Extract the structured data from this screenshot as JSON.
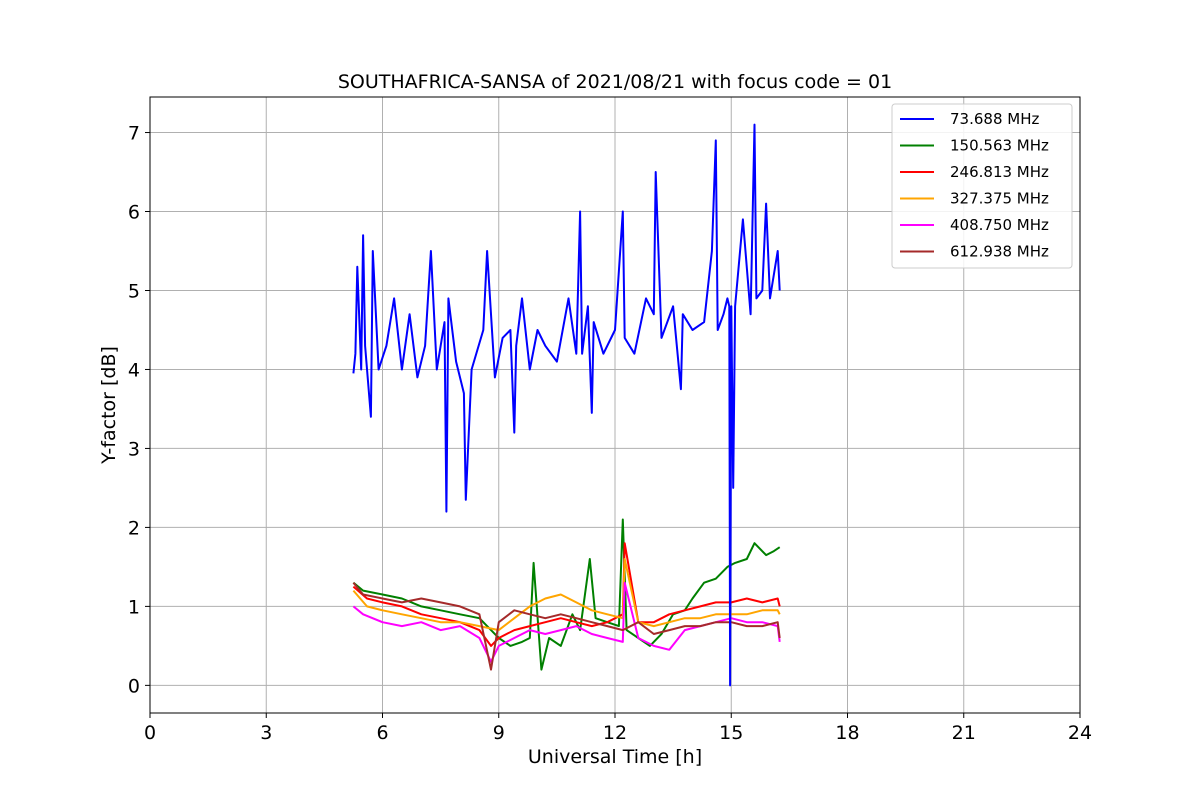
{
  "chart_data": {
    "type": "line",
    "title": "SOUTHAFRICA-SANSA of 2021/08/21 with focus code = 01",
    "xlabel": "Universal Time [h]",
    "ylabel": "Y-factor [dB]",
    "xlim": [
      0,
      24
    ],
    "ylim": [
      -0.35,
      7.45
    ],
    "xticks": [
      0,
      3,
      6,
      9,
      12,
      15,
      18,
      21,
      24
    ],
    "yticks": [
      0,
      1,
      2,
      3,
      4,
      5,
      6,
      7
    ],
    "grid": true,
    "legend_position": "upper right",
    "series": [
      {
        "name": " 73.688 MHz",
        "color": "#0000ff",
        "x": [
          5.25,
          5.3,
          5.35,
          5.45,
          5.5,
          5.55,
          5.7,
          5.75,
          5.9,
          6.1,
          6.3,
          6.5,
          6.7,
          6.9,
          7.1,
          7.25,
          7.4,
          7.6,
          7.65,
          7.7,
          7.9,
          8.1,
          8.15,
          8.3,
          8.6,
          8.7,
          8.9,
          9.1,
          9.3,
          9.4,
          9.45,
          9.6,
          9.8,
          10.0,
          10.2,
          10.5,
          10.8,
          11.0,
          11.1,
          11.15,
          11.3,
          11.4,
          11.45,
          11.7,
          12.0,
          12.2,
          12.25,
          12.5,
          12.8,
          13.0,
          13.05,
          13.2,
          13.5,
          13.7,
          13.75,
          14.0,
          14.3,
          14.5,
          14.6,
          14.65,
          14.8,
          14.9,
          14.95,
          14.97,
          15.0,
          15.05,
          15.1,
          15.3,
          15.5,
          15.6,
          15.65,
          15.8,
          15.9,
          16.0,
          16.2,
          16.25
        ],
        "values": [
          3.95,
          4.2,
          5.3,
          4.0,
          5.7,
          4.3,
          3.4,
          5.5,
          4.0,
          4.3,
          4.9,
          4.0,
          4.7,
          3.9,
          4.3,
          5.5,
          4.0,
          4.6,
          2.2,
          4.9,
          4.1,
          3.7,
          2.35,
          4.0,
          4.5,
          5.5,
          3.9,
          4.4,
          4.5,
          3.2,
          4.3,
          4.9,
          4.0,
          4.5,
          4.3,
          4.1,
          4.9,
          4.2,
          6.0,
          4.2,
          4.8,
          3.45,
          4.6,
          4.2,
          4.5,
          6.0,
          4.4,
          4.2,
          4.9,
          4.7,
          6.5,
          4.4,
          4.8,
          3.75,
          4.7,
          4.5,
          4.6,
          5.5,
          6.9,
          4.5,
          4.7,
          4.9,
          4.8,
          0.0,
          4.8,
          2.5,
          4.8,
          5.9,
          4.7,
          7.1,
          4.9,
          5.0,
          6.1,
          4.9,
          5.5,
          5.0
        ]
      },
      {
        "name": "150.563 MHz",
        "color": "#008000",
        "x": [
          5.25,
          5.5,
          6.0,
          6.5,
          7.0,
          7.5,
          8.0,
          8.5,
          8.8,
          9.0,
          9.3,
          9.6,
          9.8,
          9.9,
          10.1,
          10.3,
          10.6,
          10.9,
          11.1,
          11.35,
          11.5,
          11.8,
          12.1,
          12.2,
          12.3,
          12.6,
          12.9,
          13.2,
          13.5,
          13.8,
          14.0,
          14.3,
          14.6,
          14.9,
          15.1,
          15.4,
          15.6,
          15.9,
          16.1,
          16.25
        ],
        "values": [
          1.3,
          1.2,
          1.15,
          1.1,
          1.0,
          0.95,
          0.9,
          0.85,
          0.7,
          0.6,
          0.5,
          0.55,
          0.6,
          1.55,
          0.2,
          0.6,
          0.5,
          0.9,
          0.7,
          1.6,
          0.85,
          0.8,
          0.75,
          2.1,
          0.7,
          0.6,
          0.5,
          0.65,
          0.9,
          0.95,
          1.1,
          1.3,
          1.35,
          1.5,
          1.55,
          1.6,
          1.8,
          1.65,
          1.7,
          1.75
        ]
      },
      {
        "name": "246.813 MHz",
        "color": "#ff0000",
        "x": [
          5.25,
          5.6,
          6.0,
          6.5,
          7.0,
          7.5,
          8.0,
          8.5,
          8.8,
          9.0,
          9.4,
          9.8,
          10.2,
          10.6,
          11.0,
          11.4,
          11.8,
          12.2,
          12.25,
          12.6,
          13.0,
          13.4,
          13.8,
          14.2,
          14.6,
          15.0,
          15.4,
          15.8,
          16.2,
          16.25
        ],
        "values": [
          1.25,
          1.1,
          1.05,
          1.0,
          0.9,
          0.85,
          0.8,
          0.7,
          0.5,
          0.6,
          0.7,
          0.75,
          0.8,
          0.85,
          0.8,
          0.75,
          0.8,
          0.9,
          1.8,
          0.8,
          0.8,
          0.9,
          0.95,
          1.0,
          1.05,
          1.05,
          1.1,
          1.05,
          1.1,
          1.0
        ]
      },
      {
        "name": "327.375 MHz",
        "color": "#ffa500",
        "x": [
          5.25,
          5.6,
          6.0,
          6.5,
          7.0,
          7.5,
          8.0,
          8.5,
          9.0,
          9.4,
          9.8,
          10.2,
          10.6,
          11.0,
          11.4,
          11.8,
          12.2,
          12.25,
          12.6,
          13.0,
          13.4,
          13.8,
          14.2,
          14.6,
          15.0,
          15.4,
          15.8,
          16.2,
          16.25
        ],
        "values": [
          1.2,
          1.0,
          0.95,
          0.9,
          0.85,
          0.8,
          0.8,
          0.75,
          0.7,
          0.85,
          1.0,
          1.1,
          1.15,
          1.05,
          0.95,
          0.9,
          0.85,
          1.6,
          0.8,
          0.75,
          0.8,
          0.85,
          0.85,
          0.9,
          0.9,
          0.9,
          0.95,
          0.95,
          0.9
        ]
      },
      {
        "name": "408.750 MHz",
        "color": "#ff00ff",
        "x": [
          5.25,
          5.5,
          6.0,
          6.5,
          7.0,
          7.5,
          8.0,
          8.5,
          8.8,
          9.0,
          9.4,
          9.8,
          10.2,
          10.6,
          11.0,
          11.4,
          11.8,
          12.2,
          12.25,
          12.6,
          13.0,
          13.4,
          13.8,
          14.2,
          14.6,
          15.0,
          15.4,
          15.8,
          16.2,
          16.25
        ],
        "values": [
          1.0,
          0.9,
          0.8,
          0.75,
          0.8,
          0.7,
          0.75,
          0.6,
          0.3,
          0.5,
          0.6,
          0.7,
          0.65,
          0.7,
          0.75,
          0.65,
          0.6,
          0.55,
          1.3,
          0.6,
          0.5,
          0.45,
          0.7,
          0.75,
          0.8,
          0.85,
          0.8,
          0.8,
          0.75,
          0.55
        ]
      },
      {
        "name": "612.938 MHz",
        "color": "#a52a2a",
        "x": [
          5.25,
          5.5,
          6.0,
          6.5,
          7.0,
          7.5,
          8.0,
          8.5,
          8.8,
          9.0,
          9.4,
          9.8,
          10.2,
          10.6,
          11.0,
          11.4,
          11.8,
          12.2,
          12.6,
          13.0,
          13.4,
          13.8,
          14.2,
          14.6,
          15.0,
          15.4,
          15.8,
          16.2,
          16.25
        ],
        "values": [
          1.3,
          1.15,
          1.1,
          1.05,
          1.1,
          1.05,
          1.0,
          0.9,
          0.2,
          0.8,
          0.95,
          0.9,
          0.85,
          0.9,
          0.85,
          0.8,
          0.75,
          0.7,
          0.8,
          0.65,
          0.7,
          0.75,
          0.75,
          0.8,
          0.8,
          0.75,
          0.75,
          0.8,
          0.6
        ]
      }
    ]
  }
}
